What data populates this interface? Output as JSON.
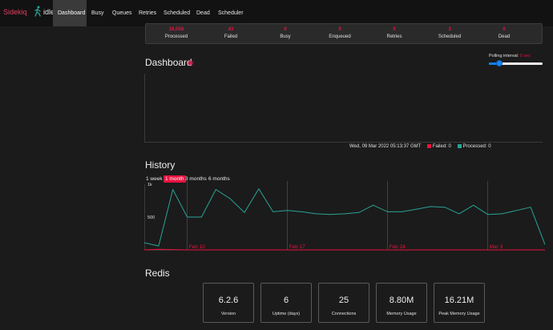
{
  "navbar": {
    "brand": "Sidekiq",
    "status": "idle",
    "items": [
      "Dashboard",
      "Busy",
      "Queues",
      "Retries",
      "Scheduled",
      "Dead",
      "Scheduler"
    ],
    "active": "Dashboard"
  },
  "summary": [
    {
      "value": "16,558",
      "label": "Processed"
    },
    {
      "value": "43",
      "label": "Failed"
    },
    {
      "value": "0",
      "label": "Busy"
    },
    {
      "value": "0",
      "label": "Enqueued"
    },
    {
      "value": "0",
      "label": "Retries"
    },
    {
      "value": "3",
      "label": "Scheduled"
    },
    {
      "value": "0",
      "label": "Dead"
    }
  ],
  "dashboard": {
    "title": "Dashboard",
    "polling_label": "Polling interval:",
    "polling_value": "5 sec",
    "polling_fraction": 0.2,
    "realtime_timestamp": "Wed, 09 Mar 2022 05:13:37 GMT",
    "failed_legend": "Failed: 0",
    "processed_legend": "Processed: 0"
  },
  "history": {
    "title": "History",
    "ranges": [
      "1 week",
      "1 month",
      "3 months",
      "6 months"
    ],
    "active_range": "1 month"
  },
  "chart_data": {
    "type": "line",
    "y_tick_labels": [
      "1k",
      "500"
    ],
    "date_labels": [
      "Feb 10",
      "Feb 17",
      "Feb 24",
      "Mar 3"
    ],
    "ylim": [
      0,
      1000
    ],
    "grid": true,
    "series": [
      {
        "name": "Processed",
        "color": "#29a394",
        "values": [
          110,
          60,
          920,
          500,
          500,
          920,
          780,
          570,
          930,
          580,
          600,
          580,
          550,
          540,
          550,
          570,
          680,
          580,
          580,
          620,
          660,
          650,
          550,
          680,
          540,
          550,
          600,
          650,
          80
        ]
      },
      {
        "name": "Failed",
        "color": "#e8113f",
        "values": [
          0,
          10,
          5,
          0,
          0,
          0,
          0,
          0,
          0,
          0,
          0,
          0,
          0,
          0,
          0,
          0,
          0,
          0,
          0,
          0,
          0,
          0,
          0,
          0,
          0,
          0,
          0,
          0,
          0
        ]
      }
    ]
  },
  "redis": {
    "title": "Redis",
    "cards": [
      {
        "value": "6.2.6",
        "label": "Version"
      },
      {
        "value": "6",
        "label": "Uptime (days)"
      },
      {
        "value": "25",
        "label": "Connections"
      },
      {
        "value": "8.80M",
        "label": "Memory Usage"
      },
      {
        "value": "16.21M",
        "label": "Peak Memory Usage"
      }
    ]
  },
  "colors": {
    "accent": "#e8113f",
    "processed": "#29a394",
    "background": "#1b1b1b",
    "navbar": "#121212"
  }
}
